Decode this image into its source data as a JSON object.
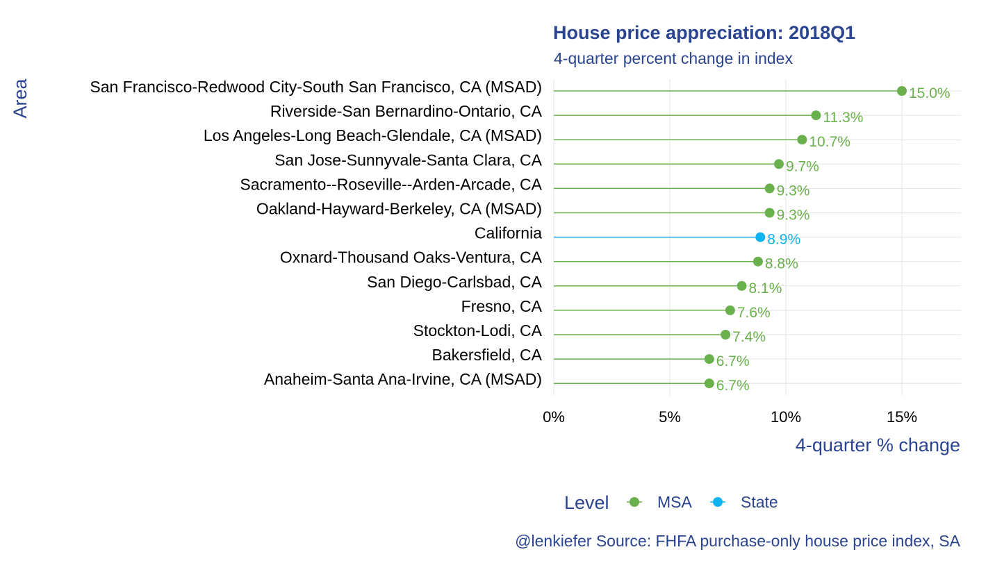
{
  "chart_data": {
    "type": "lollipop",
    "title": "House price appreciation: 2018Q1",
    "subtitle": "4-quarter percent change in index",
    "xlabel": "4-quarter % change",
    "ylabel": "Area",
    "xlim": [
      0,
      17.5
    ],
    "x_ticks": [
      "0%",
      "5%",
      "10%",
      "15%"
    ],
    "x_tick_values": [
      0,
      5,
      10,
      15
    ],
    "grid": true,
    "legend": {
      "title": "Level",
      "position": "bottom",
      "items": [
        {
          "name": "MSA",
          "color": "#6ab04c"
        },
        {
          "name": "State",
          "color": "#0fb3ef"
        }
      ]
    },
    "caption": "@lenkiefer Source: FHFA purchase-only house price index, SA",
    "categories": [
      "San Francisco-Redwood City-South San Francisco, CA (MSAD)",
      "Riverside-San Bernardino-Ontario, CA",
      "Los Angeles-Long Beach-Glendale, CA (MSAD)",
      "San Jose-Sunnyvale-Santa Clara, CA",
      "Sacramento--Roseville--Arden-Arcade, CA",
      "Oakland-Hayward-Berkeley, CA (MSAD)",
      "California",
      "Oxnard-Thousand Oaks-Ventura, CA",
      "San Diego-Carlsbad, CA",
      "Fresno, CA",
      "Stockton-Lodi, CA",
      "Bakersfield, CA",
      "Anaheim-Santa Ana-Irvine, CA (MSAD)"
    ],
    "values": [
      15.0,
      11.3,
      10.7,
      9.7,
      9.3,
      9.3,
      8.9,
      8.8,
      8.1,
      7.6,
      7.4,
      6.7,
      6.7
    ],
    "value_labels": [
      "15.0%",
      "11.3%",
      "10.7%",
      "9.7%",
      "9.3%",
      "9.3%",
      "8.9%",
      "8.8%",
      "8.1%",
      "7.6%",
      "7.4%",
      "6.7%",
      "6.7%"
    ],
    "levels": [
      "MSA",
      "MSA",
      "MSA",
      "MSA",
      "MSA",
      "MSA",
      "State",
      "MSA",
      "MSA",
      "MSA",
      "MSA",
      "MSA",
      "MSA"
    ]
  },
  "colors": {
    "text_accent": "#2b4490",
    "grid": "#e3e3e3"
  }
}
